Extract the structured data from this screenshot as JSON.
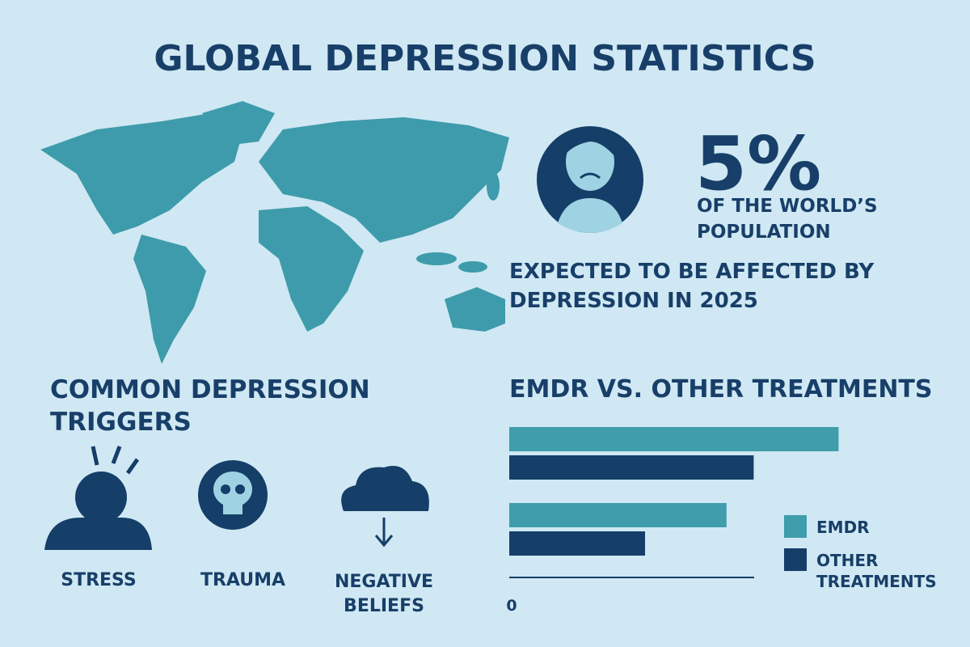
{
  "header": {
    "title": "GLOBAL DEPRESSION STATISTICS"
  },
  "stat": {
    "value": "5%",
    "line1": "OF THE WORLD’S",
    "line2": "POPULATION",
    "note": "EXPECTED TO BE AFFECTED BY DEPRESSION IN 2025"
  },
  "triggers": {
    "title": "COMMON DEPRESSION TRIGGERS",
    "items": [
      "STRESS",
      "TRAUMA",
      "NEGATIVE BELIEFS"
    ]
  },
  "chart_data": {
    "type": "bar",
    "orientation": "horizontal",
    "title": "EMDR VS. OTHER TREATMENTS",
    "categories": [
      null,
      null
    ],
    "series": [
      {
        "name": "EMDR",
        "color": "#3f9dac",
        "values": [
          97,
          64
        ]
      },
      {
        "name": "OTHER TREATMENTS",
        "color": "#153e68",
        "values": [
          72,
          40
        ]
      }
    ],
    "xlim": [
      0,
      100
    ],
    "xticks": [
      0
    ],
    "legend": "right"
  }
}
